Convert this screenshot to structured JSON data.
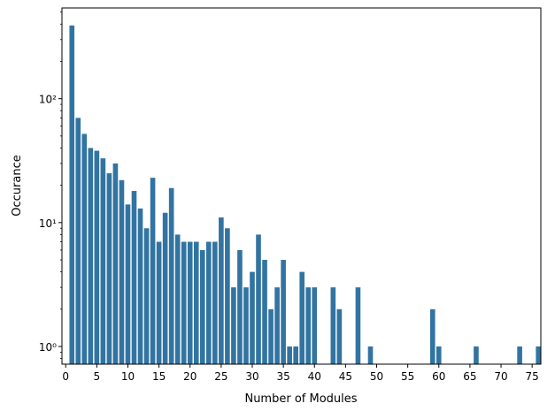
{
  "chart_data": {
    "type": "bar",
    "title": "",
    "xlabel": "Number of Modules",
    "ylabel": "Occurance",
    "yscale": "log",
    "ylim": [
      0.72,
      540
    ],
    "xlim": [
      -0.6,
      76.4
    ],
    "grid": false,
    "bar_color": "#3274a1",
    "x_ticks": [
      0,
      5,
      10,
      15,
      20,
      25,
      30,
      35,
      40,
      45,
      50,
      55,
      60,
      65,
      70,
      75
    ],
    "x_tick_labels": [
      "0",
      "5",
      "10",
      "15",
      "20",
      "25",
      "30",
      "35",
      "40",
      "45",
      "50",
      "55",
      "60",
      "65",
      "70",
      "75"
    ],
    "y_ticks": [
      1,
      10,
      100
    ],
    "y_tick_labels": [
      "10⁰",
      "10¹",
      "10²"
    ],
    "x": [
      1,
      2,
      3,
      4,
      5,
      6,
      7,
      8,
      9,
      10,
      11,
      12,
      13,
      14,
      15,
      16,
      17,
      18,
      19,
      20,
      21,
      22,
      23,
      24,
      25,
      26,
      27,
      28,
      29,
      30,
      31,
      32,
      33,
      34,
      35,
      36,
      37,
      38,
      39,
      40,
      43,
      44,
      47,
      49,
      59,
      60,
      66,
      73,
      76
    ],
    "values": [
      390,
      70,
      52,
      40,
      38,
      33,
      25,
      30,
      22,
      14,
      18,
      13,
      9,
      23,
      7,
      12,
      19,
      8,
      7,
      7,
      7,
      6,
      7,
      7,
      11,
      9,
      3,
      6,
      3,
      4,
      8,
      5,
      2,
      3,
      5,
      1,
      1,
      4,
      3,
      3,
      3,
      2,
      3,
      1,
      2,
      1,
      1,
      1,
      1
    ]
  }
}
